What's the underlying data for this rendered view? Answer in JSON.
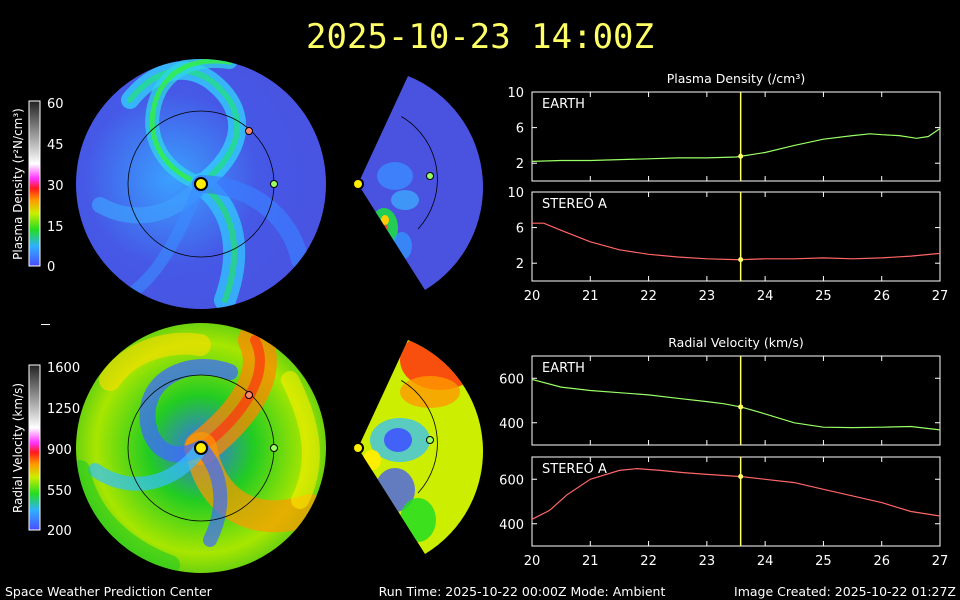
{
  "title": "2025-10-23 14:00Z",
  "footer": {
    "left": "Space Weather Prediction Center",
    "center": "Run Time: 2025-10-22 00:00Z  Mode: Ambient",
    "right": "Image Created: 2025-10-22 01:27Z"
  },
  "colors": {
    "title": "#ffff66",
    "earth": "#99ff66",
    "stereo": "#ff6666",
    "stereo_marker": "#ff8a6a",
    "sun": "#ffee00",
    "cursor": "#ffff66",
    "density_bg": "#4455dd",
    "velocity_bg": "#22bb22"
  },
  "colorbars": {
    "density": {
      "label": "Plasma Density (r²N/cm³)",
      "ticks": [
        "60",
        "45",
        "30",
        "15",
        "0"
      ]
    },
    "velocity": {
      "label": "Radial Velocity (km/s)",
      "ticks": [
        "1600",
        "1250",
        "900",
        "550",
        "200"
      ]
    }
  },
  "chart_data": [
    {
      "type": "line",
      "title": "Plasma Density (/cm³)",
      "label": "EARTH",
      "x": [
        20,
        20.5,
        21,
        21.5,
        22,
        22.5,
        23,
        23.5,
        23.6,
        24,
        24.5,
        25,
        25.5,
        25.8,
        26,
        26.3,
        26.6,
        26.8,
        27
      ],
      "y": [
        2.2,
        2.3,
        2.3,
        2.4,
        2.5,
        2.6,
        2.6,
        2.7,
        2.8,
        3.2,
        4.0,
        4.7,
        5.1,
        5.3,
        5.2,
        5.1,
        4.8,
        5.0,
        5.9
      ],
      "ylim": [
        0,
        10
      ],
      "yticks": [
        2,
        6,
        10
      ],
      "xlim": [
        20,
        27
      ],
      "cursor_x": 23.58
    },
    {
      "type": "line",
      "label": "STEREO A",
      "x": [
        20,
        20.2,
        20.5,
        21,
        21.5,
        22,
        22.5,
        23,
        23.5,
        23.6,
        24,
        24.5,
        25,
        25.5,
        26,
        26.5,
        27
      ],
      "y": [
        6.5,
        6.5,
        5.7,
        4.4,
        3.5,
        3.0,
        2.7,
        2.5,
        2.4,
        2.4,
        2.5,
        2.5,
        2.6,
        2.5,
        2.6,
        2.8,
        3.1
      ],
      "ylim": [
        0,
        10
      ],
      "yticks": [
        2,
        6,
        10
      ],
      "xlim": [
        20,
        27
      ],
      "xticks": [
        20,
        21,
        22,
        23,
        24,
        25,
        26,
        27
      ],
      "cursor_x": 23.58
    },
    {
      "type": "line",
      "title": "Radial Velocity (km/s)",
      "label": "EARTH",
      "x": [
        20,
        20.5,
        21,
        21.5,
        22,
        22.5,
        23,
        23.3,
        23.6,
        24,
        24.5,
        25,
        25.5,
        26,
        26.5,
        27
      ],
      "y": [
        595,
        560,
        545,
        535,
        525,
        510,
        495,
        485,
        470,
        440,
        400,
        380,
        378,
        380,
        383,
        368
      ],
      "ylim": [
        300,
        700
      ],
      "yticks": [
        400,
        600
      ],
      "xlim": [
        20,
        27
      ],
      "cursor_x": 23.58
    },
    {
      "type": "line",
      "label": "STEREO A",
      "x": [
        20,
        20.3,
        20.6,
        21,
        21.5,
        21.8,
        22.2,
        22.6,
        23,
        23.6,
        24,
        24.5,
        25,
        25.5,
        26,
        26.5,
        27
      ],
      "y": [
        420,
        460,
        530,
        600,
        640,
        648,
        640,
        630,
        622,
        612,
        600,
        585,
        555,
        525,
        495,
        455,
        435
      ],
      "ylim": [
        300,
        700
      ],
      "yticks": [
        400,
        600
      ],
      "xlim": [
        20,
        27
      ],
      "xticks": [
        20,
        21,
        22,
        23,
        24,
        25,
        26,
        27
      ],
      "cursor_x": 23.58
    }
  ]
}
